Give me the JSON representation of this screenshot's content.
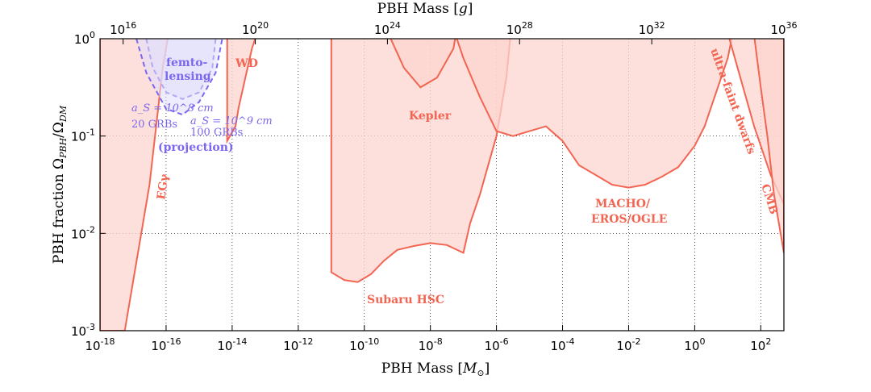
{
  "chart_data": {
    "type": "area",
    "title": "",
    "xlabel_bottom": "PBH Mass [M⊙]",
    "xlabel_top": "PBH Mass [g]",
    "ylabel": "PBH fraction Ω_PBH/Ω_DM",
    "x_scale": "log10",
    "y_scale": "log10",
    "xlim_log10_msun": [
      -18,
      2.7
    ],
    "ylim_log10": [
      -3,
      0
    ],
    "grid": true,
    "x_ticks_bottom": [
      "10-18",
      "10-16",
      "10-14",
      "10-12",
      "10-10",
      "10-8",
      "10-6",
      "10-4",
      "10-2",
      "100",
      "102"
    ],
    "x_ticks_bottom_values_log10": [
      -18,
      -16,
      -14,
      -12,
      -10,
      -8,
      -6,
      -4,
      -2,
      0,
      2
    ],
    "x_ticks_top": [
      "1016",
      "1020",
      "1024",
      "1028",
      "1032",
      "1036"
    ],
    "x_ticks_top_values_log10_g": [
      16,
      20,
      24,
      28,
      32,
      36
    ],
    "y_ticks": [
      "10-3",
      "10-2",
      "10-1",
      "100"
    ],
    "y_ticks_values_log10": [
      -3,
      -2,
      -1,
      0
    ],
    "colors": {
      "constraint_fill": "#fcd4cf",
      "constraint_line": "#f26552",
      "overlap_fill": "#f8b5ac",
      "projection_fill": "#e0defc",
      "projection_line": "#7b68ee",
      "label_red": "#f26552",
      "label_purple": "#7b68ee"
    },
    "series": [
      {
        "name": "EGγ",
        "kind": "constraint",
        "points_log10": [
          [
            -18,
            0.3
          ],
          [
            -18,
            -3
          ],
          [
            -17.25,
            -3
          ],
          [
            -16.5,
            -1.5
          ],
          [
            -16.1,
            -0.3
          ],
          [
            -15.8,
            0.3
          ]
        ]
      },
      {
        "name": "WD",
        "kind": "constraint",
        "points_log10": [
          [
            -14.15,
            0.3
          ],
          [
            -14.15,
            -1.05
          ],
          [
            -13.9,
            -0.9
          ],
          [
            -13.8,
            -0.7
          ],
          [
            -13.4,
            -0.1
          ],
          [
            -13.0,
            0.3
          ]
        ]
      },
      {
        "name": "Subaru HSC",
        "kind": "constraint",
        "points_log10": [
          [
            -11,
            0.3
          ],
          [
            -11,
            -2.4
          ],
          [
            -10.6,
            -2.48
          ],
          [
            -10.2,
            -2.5
          ],
          [
            -9.8,
            -2.42
          ],
          [
            -9.4,
            -2.28
          ],
          [
            -9.0,
            -2.17
          ],
          [
            -8.5,
            -2.13
          ],
          [
            -8.0,
            -2.1
          ],
          [
            -7.5,
            -2.12
          ],
          [
            -7.0,
            -2.2
          ],
          [
            -6.8,
            -1.9
          ],
          [
            -6.5,
            -1.6
          ],
          [
            -6.0,
            -1.0
          ],
          [
            -5.7,
            -0.4
          ],
          [
            -5.5,
            0.3
          ]
        ]
      },
      {
        "name": "Kepler",
        "kind": "constraint",
        "points_log10": [
          [
            -9.3,
            0.3
          ],
          [
            -9.2,
            0.0
          ],
          [
            -8.8,
            -0.3
          ],
          [
            -8.3,
            -0.5
          ],
          [
            -7.8,
            -0.4
          ],
          [
            -7.3,
            -0.1
          ],
          [
            -7.1,
            0.3
          ]
        ]
      },
      {
        "name": "MACHO/EROS/OGLE",
        "kind": "constraint",
        "points_log10": [
          [
            -7.5,
            0.3
          ],
          [
            -7.0,
            -0.2
          ],
          [
            -6.5,
            -0.6
          ],
          [
            -6.0,
            -0.95
          ],
          [
            -5.5,
            -1.0
          ],
          [
            -5.0,
            -0.95
          ],
          [
            -4.5,
            -0.9
          ],
          [
            -4.0,
            -1.05
          ],
          [
            -3.5,
            -1.3
          ],
          [
            -3.0,
            -1.4
          ],
          [
            -2.5,
            -1.5
          ],
          [
            -2.0,
            -1.53
          ],
          [
            -1.5,
            -1.5
          ],
          [
            -1.0,
            -1.42
          ],
          [
            -0.5,
            -1.32
          ],
          [
            0.0,
            -1.1
          ],
          [
            0.3,
            -0.9
          ],
          [
            0.7,
            -0.5
          ],
          [
            1.0,
            -0.2
          ],
          [
            1.3,
            0.3
          ]
        ]
      },
      {
        "name": "ultra-faint dwarfs",
        "kind": "constraint",
        "points_log10": [
          [
            0.8,
            0.3
          ],
          [
            1.3,
            -0.3
          ],
          [
            1.8,
            -0.9
          ],
          [
            2.3,
            -1.4
          ],
          [
            2.7,
            -1.7
          ],
          [
            2.7,
            0.3
          ]
        ]
      },
      {
        "name": "CMB",
        "kind": "constraint",
        "points_log10": [
          [
            1.7,
            0.3
          ],
          [
            2.0,
            -0.5
          ],
          [
            2.2,
            -1.0
          ],
          [
            2.4,
            -1.6
          ],
          [
            2.6,
            -2.0
          ],
          [
            2.7,
            -2.2
          ],
          [
            2.7,
            0.3
          ]
        ]
      },
      {
        "name": "femtolensing 20 GRBs (projection)",
        "kind": "projection",
        "points_log10": [
          [
            -16.6,
            0.0
          ],
          [
            -16.4,
            -0.3
          ],
          [
            -16.0,
            -0.55
          ],
          [
            -15.5,
            -0.62
          ],
          [
            -15.0,
            -0.55
          ],
          [
            -14.6,
            -0.3
          ],
          [
            -14.5,
            0.0
          ]
        ]
      },
      {
        "name": "femtolensing 100 GRBs (projection)",
        "kind": "projection",
        "points_log10": [
          [
            -16.9,
            0.0
          ],
          [
            -16.6,
            -0.35
          ],
          [
            -16.0,
            -0.72
          ],
          [
            -15.5,
            -0.78
          ],
          [
            -15.0,
            -0.65
          ],
          [
            -14.5,
            -0.35
          ],
          [
            -14.3,
            0.0
          ]
        ]
      }
    ],
    "annotations": {
      "eg": "EGγ",
      "wd": "WD",
      "femto_1": "femto-",
      "femto_2": "lensing",
      "as1": "a_S = 10^8 cm",
      "grb20": "20 GRBs",
      "as2": "a_S = 10^9 cm",
      "grb100": "100 GRBs",
      "projection": "(projection)",
      "kepler": "Kepler",
      "subaru": "Subaru HSC",
      "macho_1": "MACHO/",
      "macho_2": "EROS/OGLE",
      "ufd": "ultra-faint dwarfs",
      "cmb": "CMB"
    }
  }
}
